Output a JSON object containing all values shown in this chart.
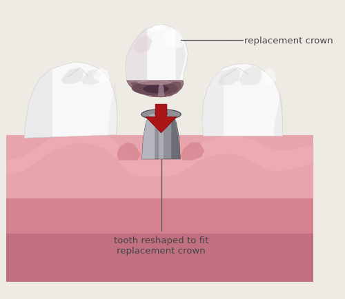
{
  "bg_color": "#eeeae4",
  "gum_color_light": "#e8a4ac",
  "gum_color_mid": "#d4838e",
  "gum_color_dark": "#c07080",
  "gum_deep": "#b56070",
  "tooth_white": "#f8f8f8",
  "tooth_offwhite": "#ede8e8",
  "tooth_shadow": "#c8c4c8",
  "tooth_crease": "#b8b4bc",
  "crown_hollow_outer": "#9a7880",
  "crown_hollow_inner": "#7a5860",
  "crown_hollow_rim": "#b89098",
  "metal_light": "#c0c0c8",
  "metal_mid": "#909098",
  "metal_dark": "#606068",
  "metal_darker": "#404048",
  "arrow_color": "#aa1515",
  "label_color": "#444444",
  "line_color": "#555555",
  "label1": "replacement crown",
  "label2": "tooth reshaped to fit\nreplacement crown",
  "font_size": 9.5
}
